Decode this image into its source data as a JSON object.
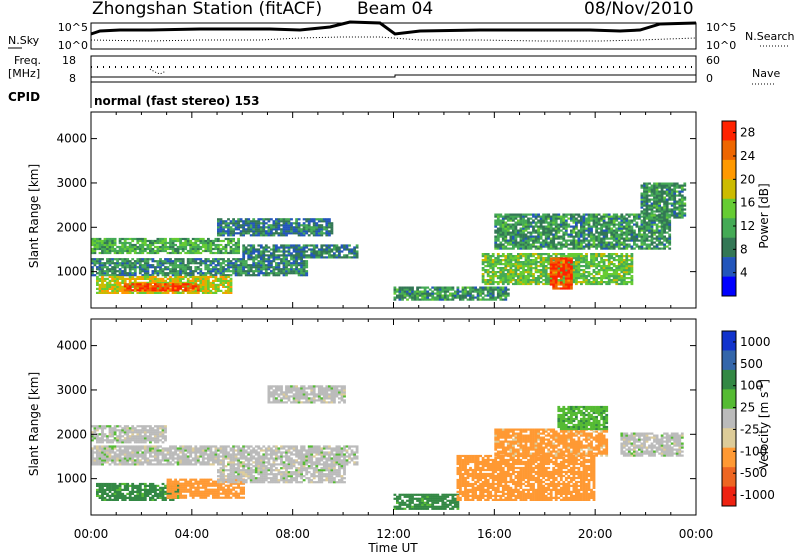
{
  "header": {
    "title": "Zhongshan Station (fitACF)",
    "beam": "Beam 04",
    "date": "08/Nov/2010"
  },
  "top_panel": {
    "left_label": "N.Sky",
    "left_ticks": [
      "10^5",
      "10^0"
    ],
    "right_ticks": [
      "10^5",
      "10^0"
    ],
    "right_label": "N.Search"
  },
  "freq_panel": {
    "left_label_line1": "Freq.",
    "left_label_line2": "[MHz]",
    "left_ticks": [
      "18",
      "8"
    ],
    "right_ticks": [
      "60",
      "0"
    ],
    "right_label": "Nave"
  },
  "cpid_panel": {
    "label": "CPID",
    "text": "normal (fast stereo) 153"
  },
  "colors": {
    "power": [
      "#0000ff",
      "#2255bb",
      "#337755",
      "#44aa55",
      "#66cc33",
      "#ccbb00",
      "#ff9900",
      "#ee6600",
      "#ff2200"
    ],
    "velocity": [
      "#1133cc",
      "#3366aa",
      "#338844",
      "#55bb33",
      "#bbbbbb",
      "#ddcc99",
      "#ff9933",
      "#ee6622",
      "#ee2211"
    ]
  },
  "chart_data": [
    {
      "type": "heatmap",
      "name": "power",
      "xlabel": "",
      "ylabel": "Slant Range [km]",
      "x_ticks": [
        "00:00",
        "04:00",
        "08:00",
        "12:00",
        "16:00",
        "20:00",
        "00:00"
      ],
      "y_ticks": [
        "1000",
        "2000",
        "3000",
        "4000"
      ],
      "ylim": [
        180,
        4600
      ],
      "colorbar_label": "Power [dB]",
      "colorbar_ticks": [
        "4",
        "8",
        "12",
        "16",
        "20",
        "24",
        "28"
      ],
      "color_range": [
        0,
        30
      ],
      "regions": [
        {
          "t0": 0.0,
          "t1": 5.8,
          "r0": 1400,
          "r1": 1750,
          "val": 12
        },
        {
          "t0": 0.0,
          "t1": 8.5,
          "r0": 900,
          "r1": 1300,
          "val": 9
        },
        {
          "t0": 0.2,
          "t1": 5.5,
          "r0": 500,
          "r1": 900,
          "val": 18
        },
        {
          "t0": 1.3,
          "t1": 4.3,
          "r0": 560,
          "r1": 720,
          "val": 27
        },
        {
          "t0": 5.0,
          "t1": 9.5,
          "r0": 1800,
          "r1": 2200,
          "val": 8
        },
        {
          "t0": 6.0,
          "t1": 10.5,
          "r0": 1300,
          "r1": 1600,
          "val": 8
        },
        {
          "t0": 12.0,
          "t1": 16.5,
          "r0": 350,
          "r1": 650,
          "val": 10
        },
        {
          "t0": 15.5,
          "t1": 21.5,
          "r0": 700,
          "r1": 1400,
          "val": 14
        },
        {
          "t0": 18.2,
          "t1": 19.1,
          "r0": 600,
          "r1": 1300,
          "val": 27
        },
        {
          "t0": 16.0,
          "t1": 23.0,
          "r0": 1500,
          "r1": 2300,
          "val": 10
        },
        {
          "t0": 21.8,
          "t1": 23.6,
          "r0": 2200,
          "r1": 3000,
          "val": 10
        }
      ]
    },
    {
      "type": "heatmap",
      "name": "velocity",
      "xlabel": "Time UT",
      "ylabel": "Slant Range [km]",
      "x_ticks": [
        "00:00",
        "04:00",
        "08:00",
        "12:00",
        "16:00",
        "20:00",
        "00:00"
      ],
      "y_ticks": [
        "1000",
        "2000",
        "3000",
        "4000"
      ],
      "ylim": [
        180,
        4600
      ],
      "colorbar_label": "Velocity [m s",
      "colorbar_label_sup": "-1",
      "colorbar_label_end": "]",
      "colorbar_ticks": [
        "1000",
        "500",
        "100",
        "25",
        "-25",
        "-100",
        "-500",
        "-1000"
      ],
      "regions": [
        {
          "t0": 0.0,
          "t1": 10.5,
          "r0": 1300,
          "r1": 1750,
          "val": 0
        },
        {
          "t0": 0.0,
          "t1": 3.0,
          "r0": 1800,
          "r1": 2200,
          "val": 0
        },
        {
          "t0": 0.2,
          "t1": 3.5,
          "r0": 500,
          "r1": 900,
          "val": 150
        },
        {
          "t0": 3.0,
          "t1": 6.0,
          "r0": 550,
          "r1": 1000,
          "val": -200
        },
        {
          "t0": 5.0,
          "t1": 10.0,
          "r0": 900,
          "r1": 1300,
          "val": 0
        },
        {
          "t0": 7.0,
          "t1": 10.0,
          "r0": 2700,
          "r1": 3100,
          "val": 0
        },
        {
          "t0": 12.0,
          "t1": 14.5,
          "r0": 300,
          "r1": 650,
          "val": 150
        },
        {
          "t0": 14.5,
          "t1": 20.0,
          "r0": 500,
          "r1": 1500,
          "val": -300
        },
        {
          "t0": 16.0,
          "t1": 20.5,
          "r0": 1500,
          "r1": 2100,
          "val": -150
        },
        {
          "t0": 18.5,
          "t1": 20.5,
          "r0": 2100,
          "r1": 2600,
          "val": 80
        },
        {
          "t0": 21.0,
          "t1": 23.5,
          "r0": 1500,
          "r1": 2000,
          "val": 0
        }
      ]
    }
  ]
}
